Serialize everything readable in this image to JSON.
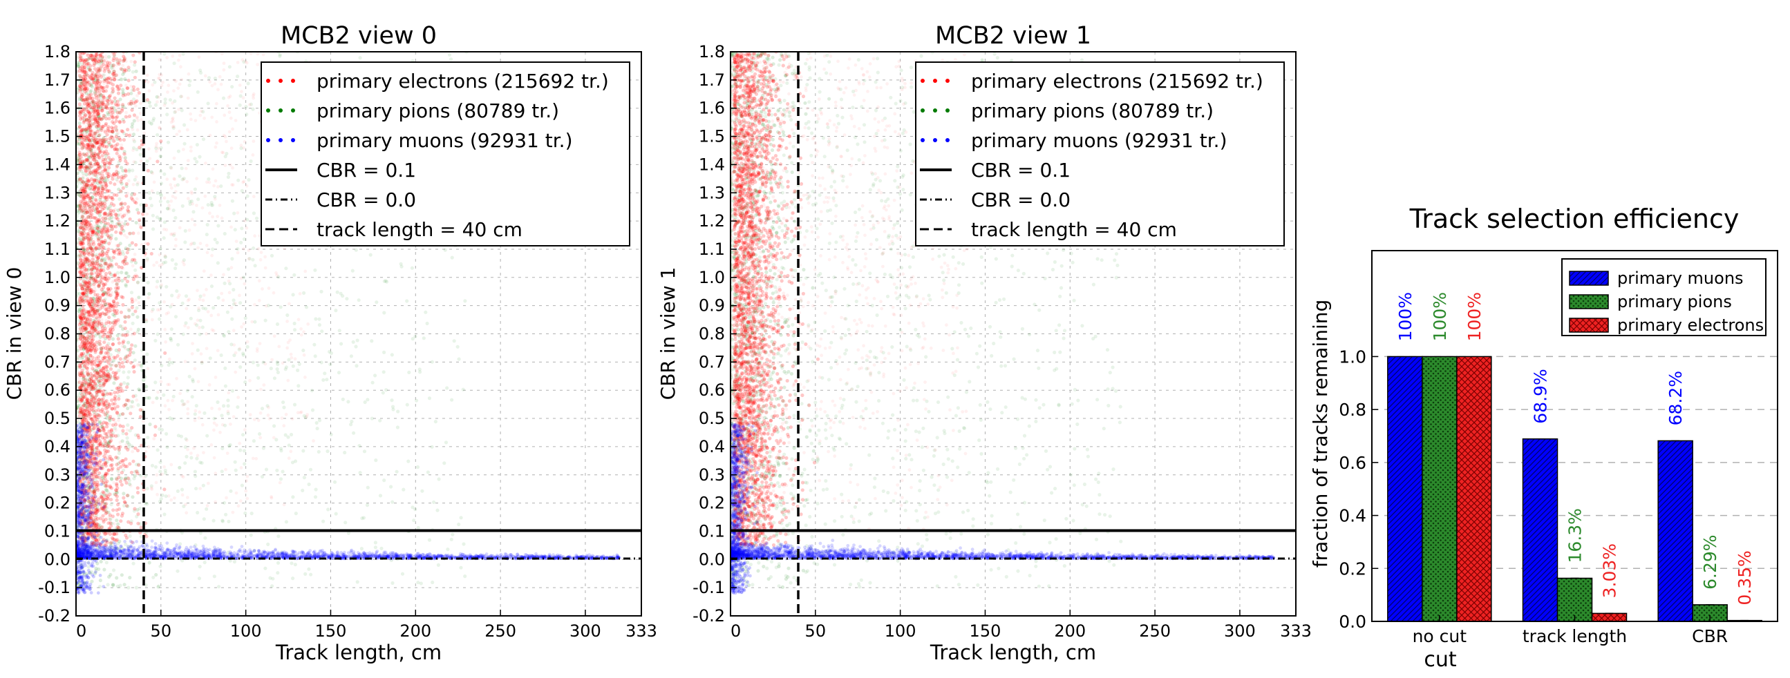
{
  "colors": {
    "electrons": "#ff0000",
    "pions": "#007a00",
    "muons": "#0000ff",
    "bar_muons": "#0000ff",
    "bar_pions": "#2c8a2c",
    "bar_electrons": "#ee2222",
    "grid": "#b0b0b0"
  },
  "chart_data": [
    {
      "type": "scatter",
      "title": "MCB2 view 0",
      "xlabel": "Track length, cm",
      "ylabel": "CBR in view 0",
      "xlim": [
        0,
        333
      ],
      "ylim": [
        -0.2,
        1.8
      ],
      "xticks": [
        "0",
        "50",
        "100",
        "150",
        "200",
        "250",
        "300",
        "333"
      ],
      "yticks": [
        "-0.2",
        "-0.1",
        "0.0",
        "0.1",
        "0.2",
        "0.3",
        "0.4",
        "0.5",
        "0.6",
        "0.7",
        "0.8",
        "0.9",
        "1.0",
        "1.1",
        "1.2",
        "1.3",
        "1.4",
        "1.5",
        "1.6",
        "1.7",
        "1.8"
      ],
      "grid": true,
      "legend_position": "top-right",
      "legend": [
        {
          "label": "primary electrons (215692 tr.)",
          "style": "dots",
          "color": "#ff0000"
        },
        {
          "label": "primary pions (80789 tr.)",
          "style": "dots",
          "color": "#007a00"
        },
        {
          "label": "primary muons (92931 tr.)",
          "style": "dots",
          "color": "#0000ff"
        },
        {
          "label": "CBR = 0.1",
          "style": "solid",
          "color": "#000000"
        },
        {
          "label": "CBR = 0.0",
          "style": "dashdot",
          "color": "#000000"
        },
        {
          "label": "track length = 40 cm",
          "style": "dashed",
          "color": "#000000"
        }
      ],
      "series": [
        {
          "name": "primary electrons (215692 tr.)",
          "count": 215692
        },
        {
          "name": "primary pions (80789 tr.)",
          "count": 80789
        },
        {
          "name": "primary muons (92931 tr.)",
          "count": 92931
        }
      ],
      "hlines": [
        0.1,
        0.0
      ],
      "vlines": [
        40
      ]
    },
    {
      "type": "scatter",
      "title": "MCB2 view 1",
      "xlabel": "Track length, cm",
      "ylabel": "CBR in view 1",
      "xlim": [
        0,
        333
      ],
      "ylim": [
        -0.2,
        1.8
      ],
      "xticks": [
        "0",
        "50",
        "100",
        "150",
        "200",
        "250",
        "300",
        "333"
      ],
      "yticks": [
        "-0.2",
        "-0.1",
        "0.0",
        "0.1",
        "0.2",
        "0.3",
        "0.4",
        "0.5",
        "0.6",
        "0.7",
        "0.8",
        "0.9",
        "1.0",
        "1.1",
        "1.2",
        "1.3",
        "1.4",
        "1.5",
        "1.6",
        "1.7",
        "1.8"
      ],
      "grid": true,
      "legend_position": "top-right",
      "legend": [
        {
          "label": "primary electrons (215692 tr.)",
          "style": "dots",
          "color": "#ff0000"
        },
        {
          "label": "primary pions (80789 tr.)",
          "style": "dots",
          "color": "#007a00"
        },
        {
          "label": "primary muons (92931 tr.)",
          "style": "dots",
          "color": "#0000ff"
        },
        {
          "label": "CBR = 0.1",
          "style": "solid",
          "color": "#000000"
        },
        {
          "label": "CBR = 0.0",
          "style": "dashdot",
          "color": "#000000"
        },
        {
          "label": "track length = 40 cm",
          "style": "dashed",
          "color": "#000000"
        }
      ],
      "series": [
        {
          "name": "primary electrons (215692 tr.)",
          "count": 215692
        },
        {
          "name": "primary pions (80789 tr.)",
          "count": 80789
        },
        {
          "name": "primary muons (92931 tr.)",
          "count": 92931
        }
      ],
      "hlines": [
        0.1,
        0.0
      ],
      "vlines": [
        40
      ]
    },
    {
      "type": "bar",
      "title": "Track selection efficiency",
      "xlabel": "cut",
      "ylabel": "fraction of tracks remaining",
      "ylim": [
        0,
        1.4
      ],
      "yticks": [
        "0.0",
        "0.2",
        "0.4",
        "0.6",
        "0.8",
        "1.0"
      ],
      "grid": true,
      "legend_position": "top-right",
      "categories": [
        "no cut",
        "track length",
        "CBR"
      ],
      "series": [
        {
          "name": "primary muons",
          "values": [
            1.0,
            0.689,
            0.682
          ],
          "labels": [
            "100%",
            "68.9%",
            "68.2%"
          ],
          "color": "#0000ff",
          "hatch": "diagonal"
        },
        {
          "name": "primary pions",
          "values": [
            1.0,
            0.163,
            0.0629
          ],
          "labels": [
            "100%",
            "16.3%",
            "6.29%"
          ],
          "color": "#2c8a2c",
          "hatch": "dots"
        },
        {
          "name": "primary electrons",
          "values": [
            1.0,
            0.0303,
            0.0035
          ],
          "labels": [
            "100%",
            "3.03%",
            "0.35%"
          ],
          "color": "#ee2222",
          "hatch": "cross"
        }
      ]
    }
  ]
}
